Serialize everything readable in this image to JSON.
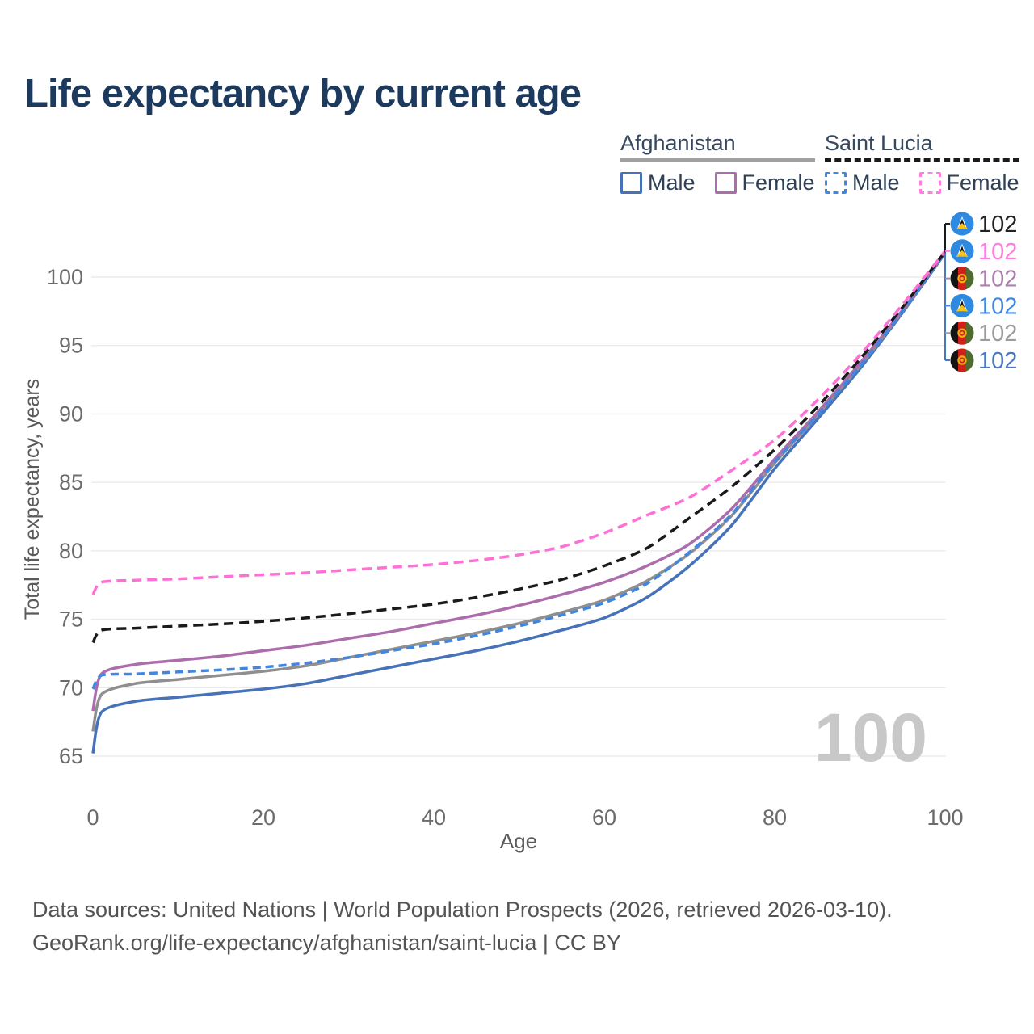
{
  "title": "Life expectancy by current age",
  "legend": {
    "groups": [
      {
        "country": "Afghanistan",
        "line_style": "solid",
        "underline_color": "#a0a0a0",
        "items": [
          {
            "label": "Male",
            "color": "#4673b8",
            "dashed": false
          },
          {
            "label": "Female",
            "color": "#ad6cac",
            "dashed": false
          }
        ]
      },
      {
        "country": "Saint Lucia",
        "line_style": "dashed",
        "underline_color": "#1a1a1a",
        "items": [
          {
            "label": "Male",
            "color": "#4186e0",
            "dashed": true
          },
          {
            "label": "Female",
            "color": "#ff7de0",
            "dashed": true
          }
        ]
      }
    ]
  },
  "chart_data": {
    "type": "line",
    "title": "Life expectancy by current age",
    "xlabel": "Age",
    "ylabel": "Total life expectancy, years",
    "x_ticks": [
      0,
      20,
      40,
      60,
      80,
      100
    ],
    "y_ticks": [
      65,
      70,
      75,
      80,
      85,
      90,
      95,
      100
    ],
    "xlim": [
      0,
      100
    ],
    "ylim": [
      63,
      103
    ],
    "grid": "horizontal",
    "x": [
      0,
      1,
      5,
      10,
      15,
      20,
      25,
      30,
      35,
      40,
      45,
      50,
      55,
      60,
      65,
      70,
      75,
      80,
      85,
      90,
      95,
      100
    ],
    "series": [
      {
        "id": "afghanistan-male",
        "country": "Afghanistan",
        "sex": "Male",
        "color": "#4673b8",
        "dash": null,
        "values": [
          65.2,
          68.2,
          69.0,
          69.3,
          69.6,
          69.9,
          70.3,
          70.9,
          71.5,
          72.1,
          72.7,
          73.4,
          74.2,
          75.1,
          76.6,
          78.9,
          81.9,
          86.0,
          89.6,
          93.3,
          97.4,
          101.75
        ]
      },
      {
        "id": "afghanistan-total",
        "country": "Afghanistan",
        "sex": "Both",
        "color": "#8f8f8f",
        "dash": null,
        "values": [
          66.8,
          69.5,
          70.3,
          70.6,
          70.9,
          71.2,
          71.6,
          72.2,
          72.8,
          73.4,
          74.0,
          74.7,
          75.5,
          76.4,
          77.8,
          79.8,
          82.6,
          86.4,
          89.9,
          93.5,
          97.5,
          101.8
        ]
      },
      {
        "id": "afghanistan-female",
        "country": "Afghanistan",
        "sex": "Female",
        "color": "#ad6cac",
        "dash": null,
        "values": [
          68.3,
          71.0,
          71.7,
          72.0,
          72.3,
          72.7,
          73.1,
          73.6,
          74.1,
          74.7,
          75.3,
          76.0,
          76.8,
          77.7,
          78.9,
          80.5,
          83.1,
          86.7,
          90.1,
          93.7,
          97.6,
          101.8
        ]
      },
      {
        "id": "saint-lucia-male",
        "country": "Saint Lucia",
        "sex": "Male",
        "color": "#4186e0",
        "dash": [
          10,
          6
        ],
        "values": [
          69.9,
          70.9,
          71.0,
          71.15,
          71.3,
          71.5,
          71.8,
          72.2,
          72.7,
          73.2,
          73.8,
          74.5,
          75.3,
          76.2,
          77.6,
          79.9,
          82.7,
          86.5,
          89.9,
          93.5,
          97.5,
          101.8
        ]
      },
      {
        "id": "saint-lucia-total",
        "country": "Saint Lucia",
        "sex": "Both",
        "color": "#1a1a1a",
        "dash": [
          12,
          7
        ],
        "values": [
          73.3,
          74.2,
          74.35,
          74.5,
          74.65,
          74.85,
          75.1,
          75.4,
          75.75,
          76.1,
          76.6,
          77.2,
          77.9,
          78.9,
          80.2,
          82.4,
          84.7,
          87.4,
          90.5,
          94.0,
          97.8,
          101.85
        ]
      },
      {
        "id": "saint-lucia-female",
        "country": "Saint Lucia",
        "sex": "Female",
        "color": "#ff70d6",
        "dash": [
          12,
          7
        ],
        "values": [
          76.8,
          77.7,
          77.85,
          77.95,
          78.1,
          78.25,
          78.4,
          78.6,
          78.8,
          79.0,
          79.3,
          79.7,
          80.3,
          81.3,
          82.6,
          83.9,
          85.9,
          88.1,
          91.0,
          94.3,
          98.0,
          101.9
        ]
      }
    ],
    "end_labels": [
      {
        "flag": "saint-lucia",
        "value": "102",
        "color": "#222222"
      },
      {
        "flag": "saint-lucia",
        "value": "102",
        "color": "#ff7dde"
      },
      {
        "flag": "afghanistan",
        "value": "102",
        "color": "#ab7fae"
      },
      {
        "flag": "saint-lucia",
        "value": "102",
        "color": "#3f86e8"
      },
      {
        "flag": "afghanistan",
        "value": "102",
        "color": "#9c9c9c"
      },
      {
        "flag": "afghanistan",
        "value": "102",
        "color": "#4a77c4"
      }
    ],
    "watermark": "100"
  },
  "footer": {
    "line1": "Data sources: United Nations | World Population Prospects (2026, retrieved 2026-03-10).",
    "line2": "GeoRank.org/life-expectancy/afghanistan/saint-lucia | CC BY"
  }
}
